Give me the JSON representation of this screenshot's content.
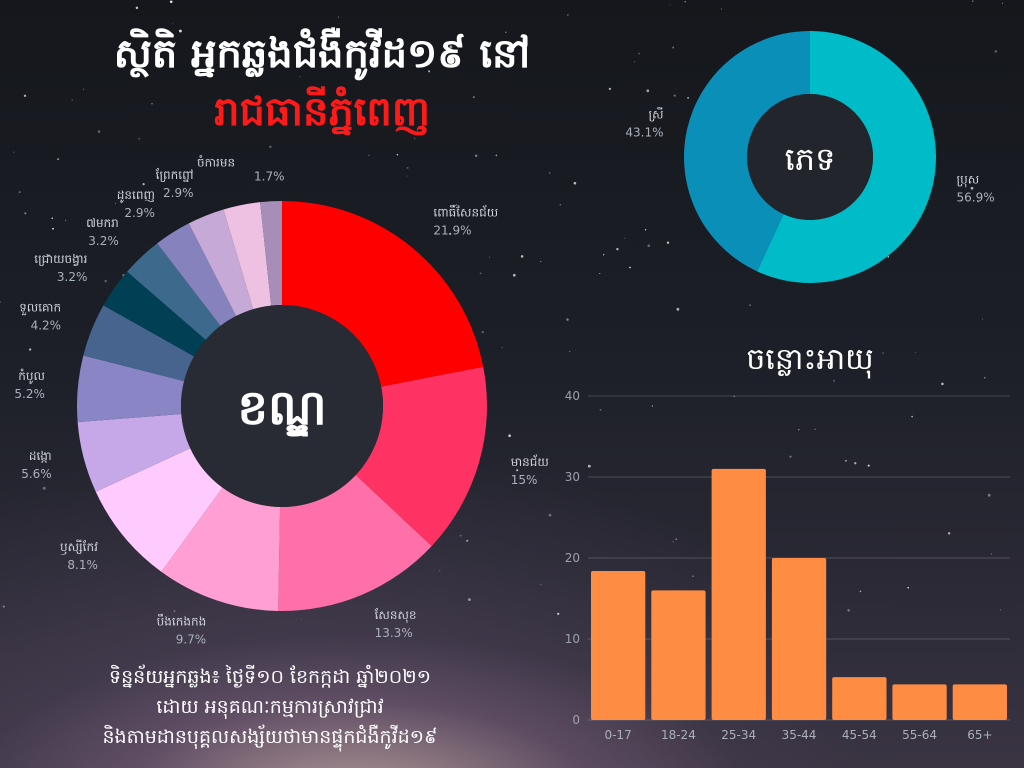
{
  "title": {
    "line1": "ស្ថិតិ អ្នកឆ្លងជំងឺកូវីដ១៩ នៅ",
    "line2": "រាជធានីភ្នំពេញ"
  },
  "footer": {
    "line1": "ទិន្នន័យអ្នកឆ្លង៖ ថ្ងៃទី១០ ខែកក្កដា ឆ្នាំ២០២១",
    "line2": "ដោយ អនុគណៈកម្មការស្រាវជ្រាវ",
    "line3": "និងតាមដានបុគ្គលសង្ស័យថាមានផ្ទុកជំងឺកូវីដ១៩"
  },
  "colors": {
    "orange_bar": "#ff8c42",
    "gender_male": "#00bcc9",
    "gender_female": "#0a8fb8"
  },
  "chart_data": [
    {
      "type": "pie",
      "center_label": "ខណ្ឌ",
      "slices": [
        {
          "label": "ពោធិ៍សែនជ័យ",
          "value": 21.9,
          "display": "21.9%",
          "color": "#ff0000"
        },
        {
          "label": "មានជ័យ",
          "value": 15.0,
          "display": "15%",
          "color": "#ff3264"
        },
        {
          "label": "សែនសុខ",
          "value": 13.3,
          "display": "13.3%",
          "color": "#ff6fa8"
        },
        {
          "label": "បឹងកេងកង",
          "value": 9.7,
          "display": "9.7%",
          "color": "#ff9fd4"
        },
        {
          "label": "ឫស្សីកែវ",
          "value": 8.1,
          "display": "8.1%",
          "color": "#ffcbff"
        },
        {
          "label": "ដង្កោ",
          "value": 5.6,
          "display": "5.6%",
          "color": "#c6a7e8"
        },
        {
          "label": "កំបូល",
          "value": 5.2,
          "display": "5.2%",
          "color": "#8a85c5"
        },
        {
          "label": "ទួលគោក",
          "value": 4.2,
          "display": "4.2%",
          "color": "#47648e"
        },
        {
          "label": "ជ្រោយចង្វារ",
          "value": 3.2,
          "display": "3.2%",
          "color": "#013f55"
        },
        {
          "label": "៧មករា",
          "value": 3.2,
          "display": "3.2%",
          "color": "#3d6a8c"
        },
        {
          "label": "ដូនពេញ",
          "value": 2.9,
          "display": "2.9%",
          "color": "#8682be"
        },
        {
          "label": "ព្រែកព្នៅ",
          "value": 2.9,
          "display": "2.9%",
          "color": "#c6a9d6"
        },
        {
          "label": "ចំការមន",
          "value": 2.9,
          "display": "",
          "color": "#eec1e2"
        },
        {
          "label": "",
          "value": 1.7,
          "display": "1.7%",
          "color": "#a78eb9"
        }
      ]
    },
    {
      "type": "pie",
      "center_label": "ភេទ",
      "slices": [
        {
          "label": "ប្រុស",
          "value": 56.9,
          "display": "56.9%",
          "color": "#00bcc9"
        },
        {
          "label": "ស្រី",
          "value": 43.1,
          "display": "43.1%",
          "color": "#0a8fb8"
        }
      ]
    },
    {
      "type": "bar",
      "title": "ចន្លោះអាយុ",
      "categories": [
        "0-17",
        "18-24",
        "25-34",
        "35-44",
        "45-54",
        "55-64",
        "65+"
      ],
      "values": [
        18.4,
        16,
        31,
        20,
        5.3,
        4.4,
        4.4
      ],
      "yticks": [
        0,
        10,
        20,
        30,
        40
      ],
      "ylim": [
        0,
        40
      ],
      "grid": true
    }
  ]
}
